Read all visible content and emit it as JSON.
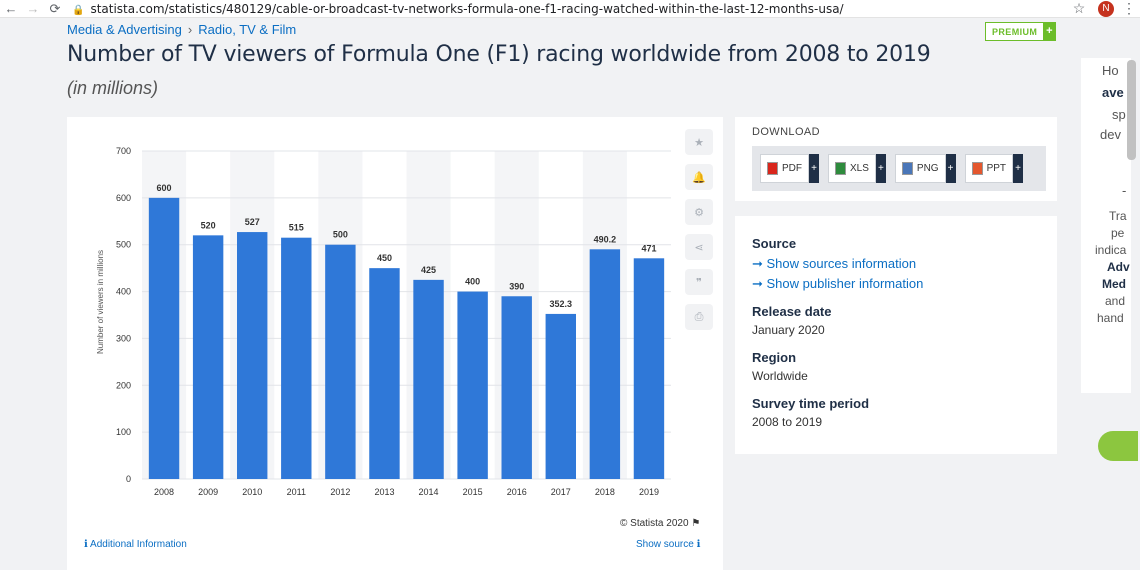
{
  "browser": {
    "url": "statista.com/statistics/480129/cable-or-broadcast-tv-networks-formula-one-f1-racing-watched-within-the-last-12-months-usa/",
    "avatar_letter": "N"
  },
  "breadcrumb": {
    "first": "Media & Advertising",
    "second": "Radio, TV & Film"
  },
  "premium": {
    "label": "PREMIUM",
    "plus": "+"
  },
  "title": "Number of TV viewers of Formula One (F1) racing worldwide from 2008 to 2019",
  "subtitle": "(in millions)",
  "chart_data": {
    "type": "bar",
    "categories": [
      "2008",
      "2009",
      "2010",
      "2011",
      "2012",
      "2013",
      "2014",
      "2015",
      "2016",
      "2017",
      "2018",
      "2019"
    ],
    "values": [
      600,
      520,
      527,
      515,
      500,
      450,
      425,
      400,
      390,
      352.3,
      490.2,
      471
    ],
    "data_labels": [
      "600",
      "520",
      "527",
      "515",
      "500",
      "450",
      "425",
      "400",
      "390",
      "352.3",
      "490.2",
      "471"
    ],
    "ylabel": "Number of viewers in millions",
    "xlabel": "",
    "ylim": [
      0,
      700
    ],
    "yticks": [
      0,
      100,
      200,
      300,
      400,
      500,
      600,
      700
    ],
    "grid": true,
    "bar_color": "#2f78d8"
  },
  "chart_footer": {
    "copyright": "© Statista 2020",
    "additional_info": "Additional Information",
    "show_source": "Show source"
  },
  "download": {
    "title": "DOWNLOAD",
    "buttons": [
      {
        "label": "PDF",
        "color": "#d9261c"
      },
      {
        "label": "XLS",
        "color": "#2e8b3d"
      },
      {
        "label": "PNG",
        "color": "#4a76b8"
      },
      {
        "label": "PPT",
        "color": "#e4572e"
      }
    ]
  },
  "info": {
    "source_heading": "Source",
    "show_sources": "➞ Show sources information",
    "show_publisher": "➞ Show publisher information",
    "release_heading": "Release date",
    "release_value": "January 2020",
    "region_heading": "Region",
    "region_value": "Worldwide",
    "survey_heading": "Survey time period",
    "survey_value": "2008 to 2019"
  },
  "side_ad": {
    "lines": [
      "Ho",
      "ave",
      "sp",
      "dev",
      "-",
      "Tra",
      "pe",
      "indica",
      "Adv",
      "Med",
      "and",
      "hand"
    ]
  }
}
